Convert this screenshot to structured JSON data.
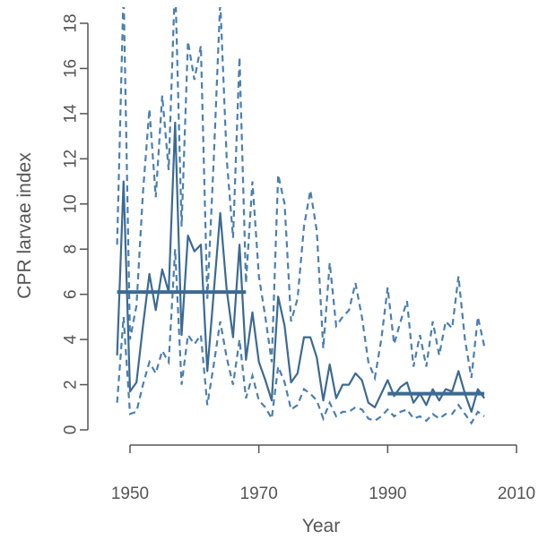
{
  "chart_data": {
    "type": "line",
    "title": "",
    "xlabel": "Year",
    "ylabel": "CPR larvae index",
    "xlim": [
      1948,
      2006
    ],
    "ylim": [
      0,
      18
    ],
    "xticks": [
      1950,
      1970,
      1990,
      2010
    ],
    "yticks": [
      0,
      2,
      4,
      6,
      8,
      10,
      12,
      14,
      16,
      18
    ],
    "grid": false,
    "legend": "none",
    "colors": {
      "line": "#3c6a93",
      "dashed": "#4a7fb0",
      "axis": "#555555"
    },
    "series": [
      {
        "style": "solid",
        "x": [
          1948,
          1949,
          1950,
          1951,
          1952,
          1953,
          1954,
          1955,
          1956,
          1957,
          1958,
          1959,
          1960,
          1961,
          1962,
          1963,
          1964,
          1965,
          1966,
          1967,
          1968,
          1969,
          1970,
          1971,
          1972,
          1973,
          1974,
          1975,
          1976,
          1977,
          1978,
          1979,
          1980,
          1981,
          1982,
          1983,
          1984,
          1985,
          1986,
          1987,
          1988,
          1989,
          1990,
          1991,
          1992,
          1993,
          1994,
          1995,
          1996,
          1997,
          1998,
          1999,
          2000,
          2001,
          2002,
          2003,
          2004,
          2005
        ],
        "y": [
          3.3,
          11.0,
          1.7,
          2.1,
          4.6,
          6.9,
          5.3,
          7.1,
          6.1,
          13.6,
          4.2,
          8.6,
          7.9,
          8.2,
          2.6,
          6.1,
          9.6,
          6.2,
          4.1,
          8.2,
          3.1,
          5.2,
          3.0,
          2.2,
          1.3,
          5.9,
          4.6,
          2.1,
          2.5,
          4.1,
          4.1,
          3.2,
          1.3,
          2.9,
          1.4,
          2.0,
          2.0,
          2.5,
          2.2,
          1.2,
          1.0,
          1.6,
          2.2,
          1.5,
          1.9,
          2.1,
          1.2,
          1.6,
          1.1,
          1.8,
          1.3,
          1.8,
          1.7,
          2.6,
          1.6,
          0.8,
          1.8,
          1.4
        ]
      },
      {
        "style": "dashed",
        "x": [
          1948,
          1949,
          1950,
          1951,
          1952,
          1953,
          1954,
          1955,
          1956,
          1957,
          1958,
          1959,
          1960,
          1961,
          1962,
          1963,
          1964,
          1965,
          1966,
          1967,
          1968,
          1969,
          1970,
          1971,
          1972,
          1973,
          1974,
          1975,
          1976,
          1977,
          1978,
          1979,
          1980,
          1981,
          1982,
          1983,
          1984,
          1985,
          1986,
          1987,
          1988,
          1989,
          1990,
          1991,
          1992,
          1993,
          1994,
          1995,
          1996,
          1997,
          1998,
          1999,
          2000,
          2001,
          2002,
          2003,
          2004,
          2005
        ],
        "y": [
          8.2,
          19.5,
          4.0,
          5.5,
          10.5,
          14.2,
          10.3,
          14.8,
          11.5,
          20.0,
          9.0,
          17.2,
          15.5,
          17.0,
          5.8,
          12.0,
          19.0,
          12.0,
          8.5,
          16.5,
          6.5,
          11.0,
          6.8,
          5.0,
          3.0,
          11.3,
          10.0,
          4.8,
          5.8,
          9.0,
          10.6,
          8.8,
          3.6,
          7.4,
          4.6,
          5.0,
          5.3,
          6.5,
          5.0,
          3.0,
          2.3,
          4.0,
          6.3,
          3.8,
          4.8,
          5.7,
          2.8,
          4.2,
          2.8,
          4.8,
          3.3,
          4.8,
          4.5,
          6.8,
          4.0,
          2.3,
          5.0,
          3.7
        ]
      },
      {
        "style": "dashed",
        "x": [
          1948,
          1949,
          1950,
          1951,
          1952,
          1953,
          1954,
          1955,
          1956,
          1957,
          1958,
          1959,
          1960,
          1961,
          1962,
          1963,
          1964,
          1965,
          1966,
          1967,
          1968,
          1969,
          1970,
          1971,
          1972,
          1973,
          1974,
          1975,
          1976,
          1977,
          1978,
          1979,
          1980,
          1981,
          1982,
          1983,
          1984,
          1985,
          1986,
          1987,
          1988,
          1989,
          1990,
          1991,
          1992,
          1993,
          1994,
          1995,
          1996,
          1997,
          1998,
          1999,
          2000,
          2001,
          2002,
          2003,
          2004,
          2005
        ],
        "y": [
          1.2,
          5.0,
          0.7,
          0.8,
          2.0,
          3.0,
          2.5,
          3.5,
          3.0,
          8.0,
          2.0,
          4.2,
          3.8,
          4.2,
          1.1,
          2.9,
          4.8,
          3.2,
          2.0,
          4.0,
          1.4,
          2.4,
          1.3,
          1.0,
          0.5,
          2.8,
          2.1,
          0.9,
          1.1,
          1.8,
          1.6,
          1.3,
          0.5,
          1.2,
          0.6,
          0.8,
          0.8,
          1.0,
          0.9,
          0.5,
          0.4,
          0.6,
          0.9,
          0.6,
          0.8,
          0.9,
          0.5,
          0.6,
          0.4,
          0.7,
          0.5,
          0.7,
          0.7,
          1.1,
          0.7,
          0.3,
          0.8,
          0.6
        ]
      },
      {
        "style": "mean",
        "x": [
          1948,
          1968
        ],
        "y": [
          6.1,
          6.1
        ]
      },
      {
        "style": "mean",
        "x": [
          1990,
          2005
        ],
        "y": [
          1.6,
          1.6
        ]
      }
    ]
  }
}
